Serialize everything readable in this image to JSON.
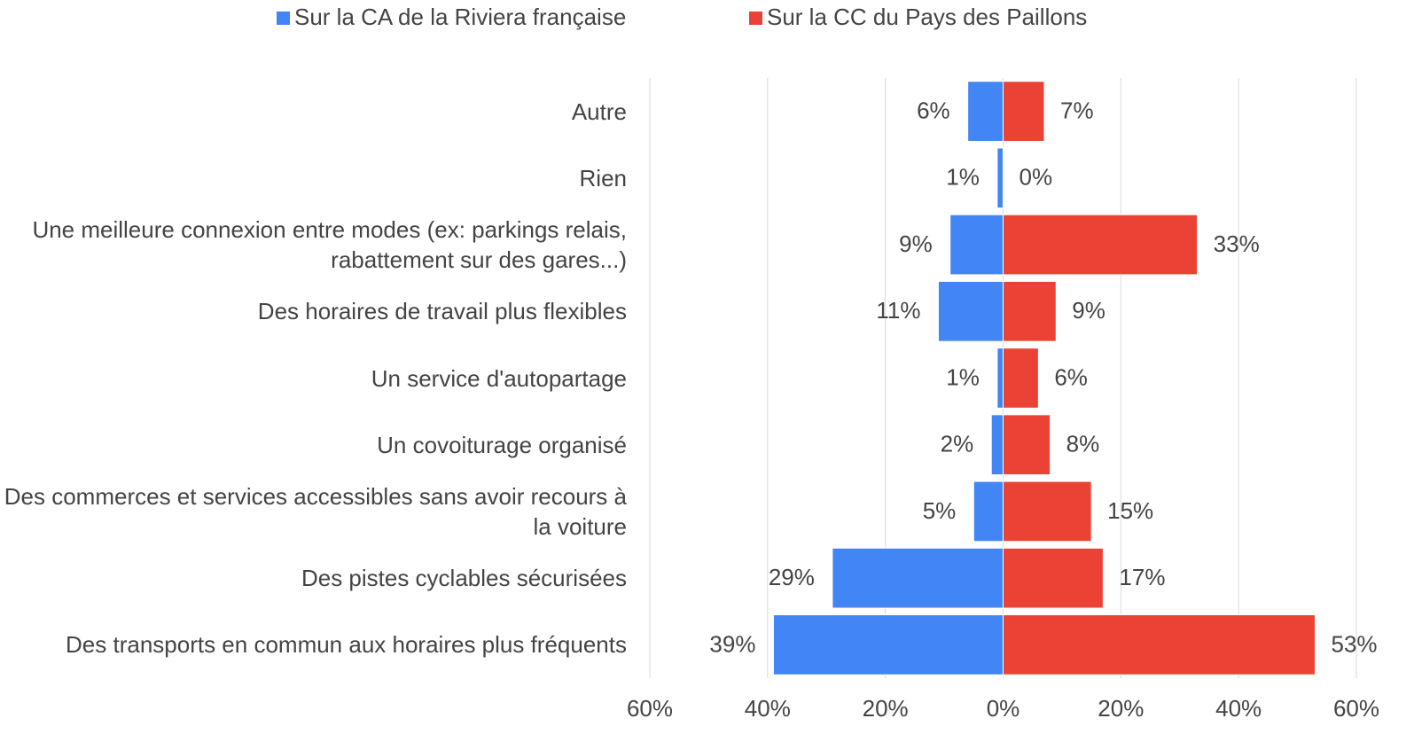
{
  "chart_data": {
    "type": "butterfly",
    "categories": [
      "Autre",
      "Rien",
      "Une meilleure connexion entre modes (ex: parkings relais, rabattement sur des gares...)",
      "Des horaires de travail plus flexibles",
      "Un service d'autopartage",
      "Un covoiturage organisé",
      "Des commerces et services accessibles sans avoir recours à la voiture",
      "Des pistes cyclables sécurisées",
      "Des transports en commun aux horaires plus fréquents"
    ],
    "series": [
      {
        "name": "Sur la CA de la Riviera française",
        "color": "#4285f4",
        "values": [
          -6,
          -1,
          -9,
          -11,
          -1,
          -2,
          -5,
          -29,
          -39
        ],
        "value_labels": [
          "6%",
          "1%",
          "9%",
          "11%",
          "1%",
          "2%",
          "5%",
          "29%",
          "39%"
        ]
      },
      {
        "name": "Sur la CC du Pays des Paillons",
        "color": "#ea4335",
        "values": [
          7,
          0,
          33,
          9,
          6,
          8,
          15,
          17,
          53
        ],
        "value_labels": [
          "7%",
          "0%",
          "33%",
          "9%",
          "6%",
          "8%",
          "15%",
          "17%",
          "53%"
        ]
      }
    ],
    "xlim": [
      -60,
      60
    ],
    "xticks": [
      {
        "value": -60,
        "label": "60%"
      },
      {
        "value": -40,
        "label": "40%"
      },
      {
        "value": -20,
        "label": "20%"
      },
      {
        "value": 0,
        "label": "0%"
      },
      {
        "value": 20,
        "label": "20%"
      },
      {
        "value": 40,
        "label": "40%"
      },
      {
        "value": 60,
        "label": "60%"
      }
    ],
    "grid": true,
    "legend": "top"
  }
}
